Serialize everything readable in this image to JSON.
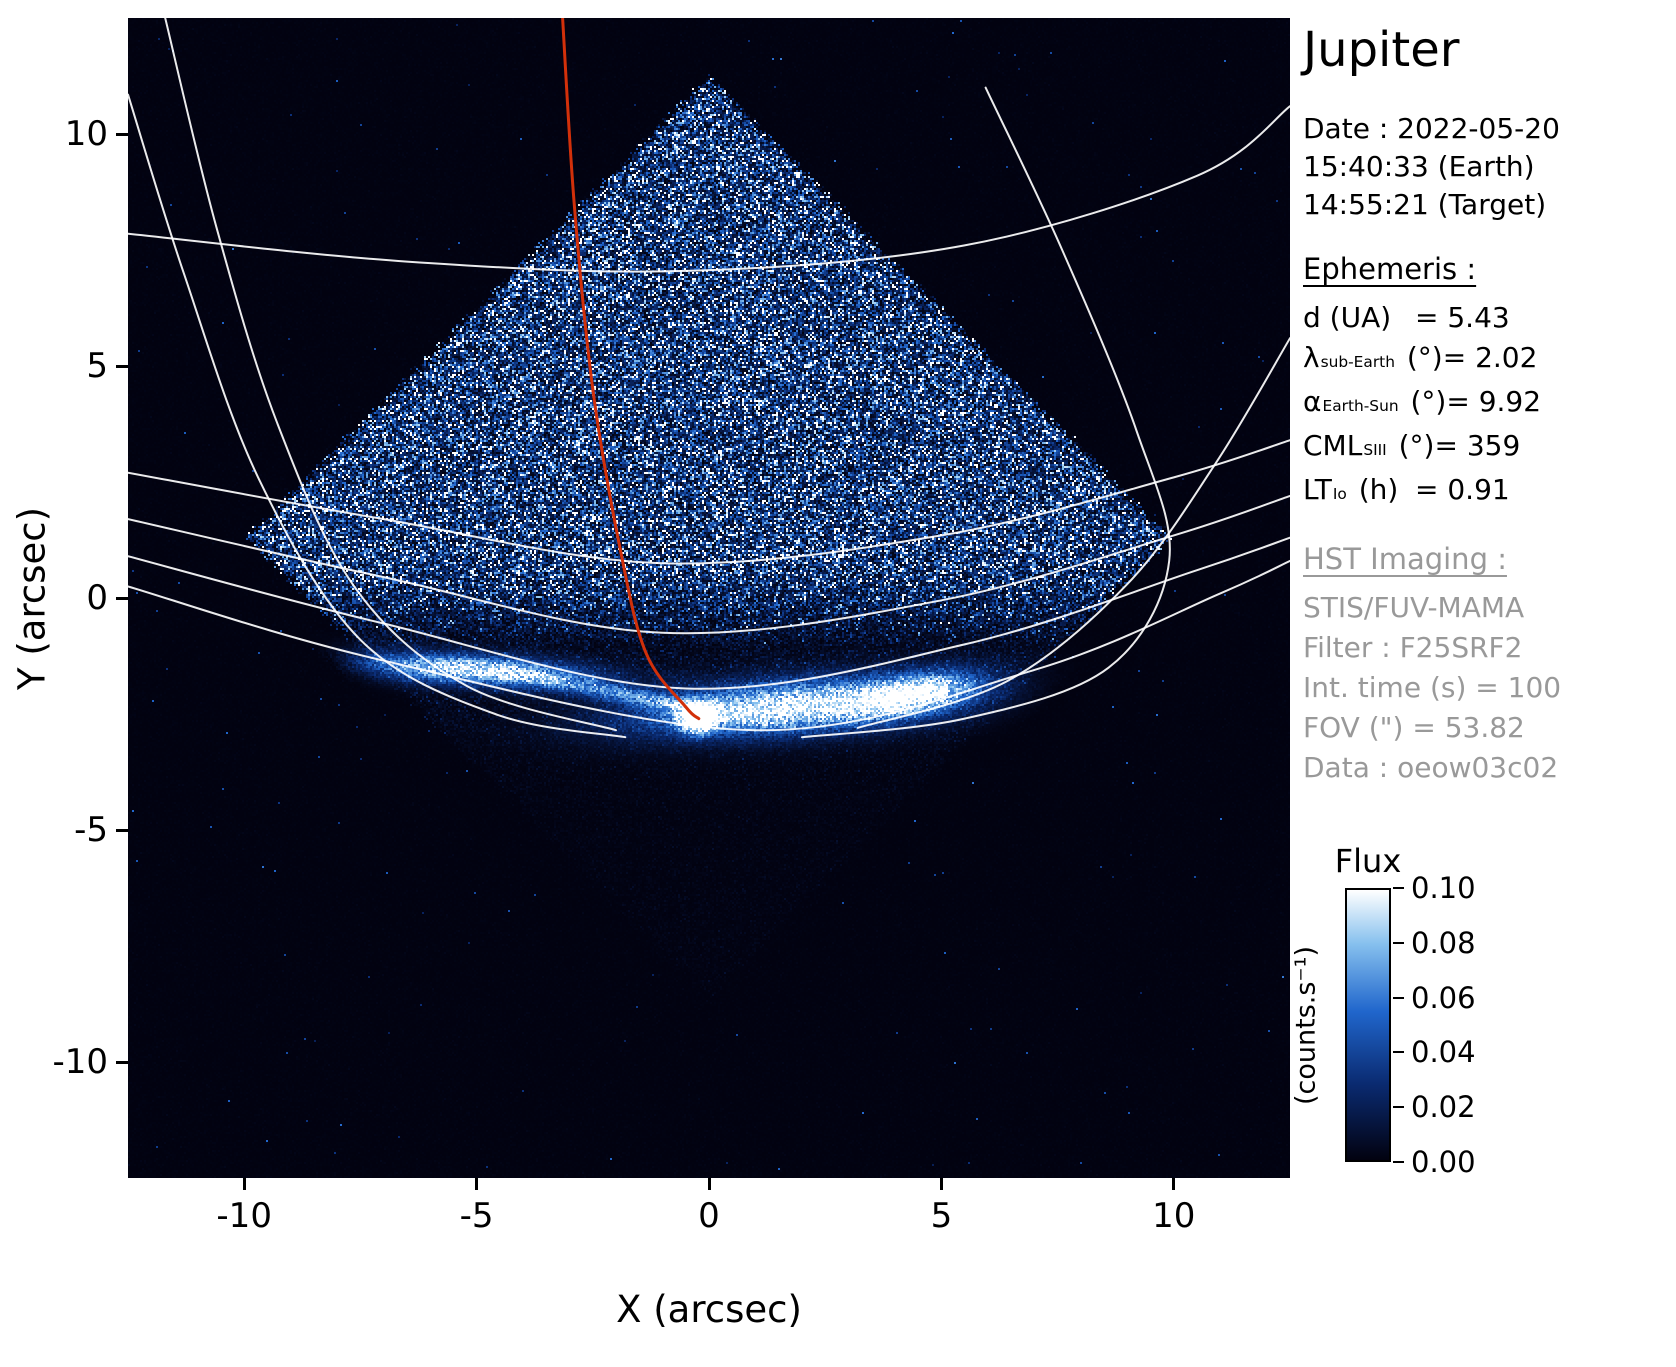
{
  "panel": {
    "title": "Jupiter",
    "date_line": "Date : 2022-05-20",
    "time_earth": "15:40:33 (Earth)",
    "time_target": "14:55:21 (Target)",
    "ephemeris_header": "Ephemeris :",
    "ephemeris": [
      {
        "sym": "d",
        "sub": "",
        "unit": " (UA)",
        "value": "= 5.43"
      },
      {
        "sym": "λ",
        "sub": "sub-Earth",
        "unit": " (°)",
        "value": "= 2.02"
      },
      {
        "sym": "α",
        "sub": "Earth-Sun",
        "unit": " (°)",
        "value": "= 9.92"
      },
      {
        "sym": "CML",
        "sub": "SIII",
        "unit": " (°)",
        "value": "= 359"
      },
      {
        "sym": "LT",
        "sub": "Io",
        "unit": " (h)",
        "value": "= 0.91"
      }
    ],
    "hst_header": "HST Imaging :",
    "hst_lines": [
      "STIS/FUV-MAMA",
      "Filter : F25SRF2",
      "Int. time (s) = 100",
      "FOV (\") = 53.82",
      "Data : oeow03c02"
    ]
  },
  "chart_data": {
    "type": "heatmap",
    "title": "Jupiter",
    "xlabel": "X (arcsec)",
    "ylabel": "Y (arcsec)",
    "xlim": [
      -12.5,
      12.5
    ],
    "ylim": [
      -12.5,
      12.5
    ],
    "xticks": [
      -10,
      -5,
      0,
      5,
      10
    ],
    "yticks": [
      -10,
      -5,
      0,
      5,
      10
    ],
    "background": "#000000",
    "grid": false,
    "colorbar": {
      "label": "Flux",
      "unit": "(counts.s⁻¹)",
      "range": [
        0,
        0.1
      ],
      "ticks": [
        0,
        0.02,
        0.04,
        0.06,
        0.08,
        0.1
      ],
      "cmap": [
        {
          "pos": 0,
          "color": "#020210"
        },
        {
          "pos": 0.28,
          "color": "#0a2a70"
        },
        {
          "pos": 0.55,
          "color": "#2066cc"
        },
        {
          "pos": 0.8,
          "color": "#86c0ee"
        },
        {
          "pos": 1,
          "color": "#ffffff"
        }
      ]
    },
    "detector_fov": {
      "shape": "diamond",
      "center": [
        0,
        1.3
      ],
      "half_diagonal": 9.9,
      "mean_level": 0.42
    },
    "aurora_blobs": [
      {
        "x": -5.1,
        "y": -1.55,
        "sx": 1.7,
        "sy": 0.22,
        "rot": -0.06,
        "amp": 1.0
      },
      {
        "x": -2.0,
        "y": -2.05,
        "sx": 1.6,
        "sy": 0.13,
        "rot": -0.18,
        "amp": 0.55
      },
      {
        "x": 1.8,
        "y": -2.35,
        "sx": 2.2,
        "sy": 0.38,
        "rot": 0.07,
        "amp": 1.15
      },
      {
        "x": 4.5,
        "y": -2.05,
        "sx": 0.9,
        "sy": 0.28,
        "rot": 0.18,
        "amp": 0.9
      },
      {
        "x": -0.25,
        "y": -2.6,
        "sx": 0.25,
        "sy": 0.2,
        "rot": 0,
        "amp": 1.5
      }
    ],
    "graticule_color": "#ffffff",
    "io_footprint_color": "#d2300a",
    "graticule": [
      [
        [
          -12.5,
          7.85
        ],
        [
          -6.5,
          7.25
        ],
        [
          -0.5,
          7.05
        ],
        [
          5.5,
          7.6
        ],
        [
          10.5,
          9.1
        ],
        [
          12.5,
          10.6
        ]
      ],
      [
        [
          -12.5,
          2.7
        ],
        [
          -7,
          1.7
        ],
        [
          -1,
          0.75
        ],
        [
          5,
          1.35
        ],
        [
          10,
          2.6
        ],
        [
          12.5,
          3.4
        ]
      ],
      [
        [
          -12.5,
          1.7
        ],
        [
          -7,
          0.45
        ],
        [
          -1,
          -0.75
        ],
        [
          5,
          -0.05
        ],
        [
          10,
          1.35
        ],
        [
          12.5,
          2.2
        ]
      ],
      [
        [
          -12.5,
          0.9
        ],
        [
          -7,
          -0.55
        ],
        [
          -0.5,
          -1.95
        ],
        [
          5.5,
          -1.0
        ],
        [
          10.5,
          0.6
        ],
        [
          12.5,
          1.3
        ]
      ],
      [
        [
          -12.5,
          0.25
        ],
        [
          -7,
          -1.35
        ],
        [
          1,
          -2.85
        ],
        [
          7,
          -1.55
        ],
        [
          11,
          0.1
        ],
        [
          12.5,
          0.8
        ]
      ],
      [
        [
          -11.7,
          12.5
        ],
        [
          -10.6,
          8.0
        ],
        [
          -9.3,
          3.8
        ],
        [
          -7.6,
          0.2
        ],
        [
          -5.2,
          -1.9
        ],
        [
          -2.0,
          -2.85
        ]
      ],
      [
        [
          -12.5,
          10.85
        ],
        [
          -11.3,
          7.0
        ],
        [
          -9.7,
          2.6
        ],
        [
          -7.5,
          -0.9
        ],
        [
          -4.6,
          -2.5
        ],
        [
          -1.8,
          -3.0
        ]
      ],
      [
        [
          5.95,
          11.0
        ],
        [
          7.6,
          7.5
        ],
        [
          9.2,
          3.6
        ],
        [
          9.9,
          0.8
        ],
        [
          8.6,
          -1.5
        ],
        [
          5.5,
          -2.6
        ],
        [
          2.0,
          -3.0
        ]
      ],
      [
        [
          12.5,
          5.6
        ],
        [
          10.9,
          2.9
        ],
        [
          9.0,
          0.3
        ],
        [
          6.4,
          -1.8
        ],
        [
          3.2,
          -2.8
        ]
      ]
    ],
    "io_footprint_track": [
      [
        -3.15,
        12.5
      ],
      [
        -2.9,
        8.5
      ],
      [
        -2.5,
        4.5
      ],
      [
        -1.9,
        1.0
      ],
      [
        -1.35,
        -1.2
      ],
      [
        -0.5,
        -2.35
      ],
      [
        -0.22,
        -2.6
      ]
    ]
  }
}
